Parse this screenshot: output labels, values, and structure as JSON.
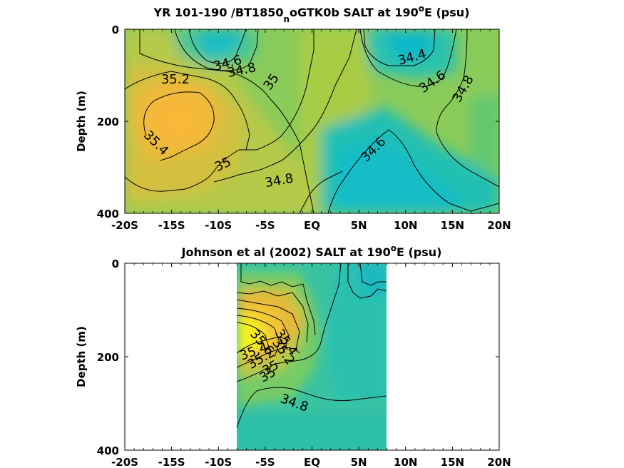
{
  "chart_data": [
    {
      "type": "contour",
      "title": "YR 101-190 /BT1850",
      "title_sub": "n",
      "title_mid": "oGTK0b SALT at 190",
      "title_sup": "o",
      "title_end": "E (psu)",
      "ylabel": "Depth (m)",
      "xlim": [
        -20,
        20
      ],
      "ylim": [
        400,
        0
      ],
      "x_ticks": [
        -20,
        -15,
        -10,
        -5,
        0,
        5,
        10,
        15,
        20
      ],
      "x_tick_labels": [
        "-20S",
        "-15S",
        "-10S",
        "-5S",
        "EQ",
        "5N",
        "10N",
        "15N",
        "20N"
      ],
      "y_ticks": [
        0,
        200,
        400
      ],
      "y_tick_labels": [
        "0",
        "200",
        "400"
      ],
      "data_extent": [
        -20,
        20
      ],
      "colors": [
        "#12c0c4",
        "#2fc3a8",
        "#6fcc6a",
        "#a9cc45",
        "#e0b73a",
        "#f6b838"
      ],
      "color_levels": [
        34.4,
        34.6,
        34.8,
        35.0,
        35.2,
        35.4
      ],
      "contour_labels": [
        {
          "text": "34.6",
          "x": -9,
          "y": 75,
          "angle": -15
        },
        {
          "text": "34.8",
          "x": -7.5,
          "y": 90,
          "angle": -12
        },
        {
          "text": "35",
          "x": -4.3,
          "y": 115,
          "angle": -55
        },
        {
          "text": "35.2",
          "x": -14.6,
          "y": 110,
          "angle": 0
        },
        {
          "text": "35.4",
          "x": -16.7,
          "y": 248,
          "angle": 45
        },
        {
          "text": "35",
          "x": -9.5,
          "y": 295,
          "angle": -25
        },
        {
          "text": "34.8",
          "x": -3.5,
          "y": 330,
          "angle": -10
        },
        {
          "text": "34.6",
          "x": 6.6,
          "y": 262,
          "angle": -45
        },
        {
          "text": "34.4",
          "x": 10.7,
          "y": 62,
          "angle": -15
        },
        {
          "text": "34.6",
          "x": 12.9,
          "y": 115,
          "angle": -35
        },
        {
          "text": "34.8",
          "x": 16.2,
          "y": 130,
          "angle": -60
        }
      ]
    },
    {
      "type": "contour",
      "title": "Johnson et al (2002) SALT at 190",
      "title_sup": "o",
      "title_end": "E (psu)",
      "ylabel": "Depth (m)",
      "xlim": [
        -20,
        20
      ],
      "ylim": [
        400,
        0
      ],
      "x_ticks": [
        -20,
        -15,
        -10,
        -5,
        0,
        5,
        10,
        15,
        20
      ],
      "x_tick_labels": [
        "-20S",
        "-15S",
        "-10S",
        "-5S",
        "EQ",
        "5N",
        "10N",
        "15N",
        "20N"
      ],
      "y_ticks": [
        0,
        200,
        400
      ],
      "y_tick_labels": [
        "0",
        "200",
        "400"
      ],
      "data_extent": [
        -8,
        8
      ],
      "colors": [
        "#19bcc0",
        "#39c49f",
        "#74cb68",
        "#b6c946",
        "#e6b93a",
        "#f4ef24"
      ],
      "color_levels": [
        34.4,
        34.6,
        34.8,
        35.0,
        35.2,
        35.8
      ],
      "contour_labels": [
        {
          "text": "34.8",
          "x": -1.9,
          "y": 300,
          "angle": 20
        },
        {
          "text": "35.4",
          "x": -2.8,
          "y": 170,
          "angle": 55
        },
        {
          "text": "35.2",
          "x": -3.1,
          "y": 190,
          "angle": 55
        },
        {
          "text": "35.6",
          "x": -5.4,
          "y": 170,
          "angle": 50
        },
        {
          "text": "35",
          "x": -4.4,
          "y": 225,
          "angle": -30
        },
        {
          "text": "35",
          "x": -4.7,
          "y": 240,
          "angle": -30
        },
        {
          "text": "35.2",
          "x": -5.4,
          "y": 205,
          "angle": -30
        },
        {
          "text": "35.4",
          "x": -6.2,
          "y": 190,
          "angle": -20
        }
      ]
    }
  ]
}
